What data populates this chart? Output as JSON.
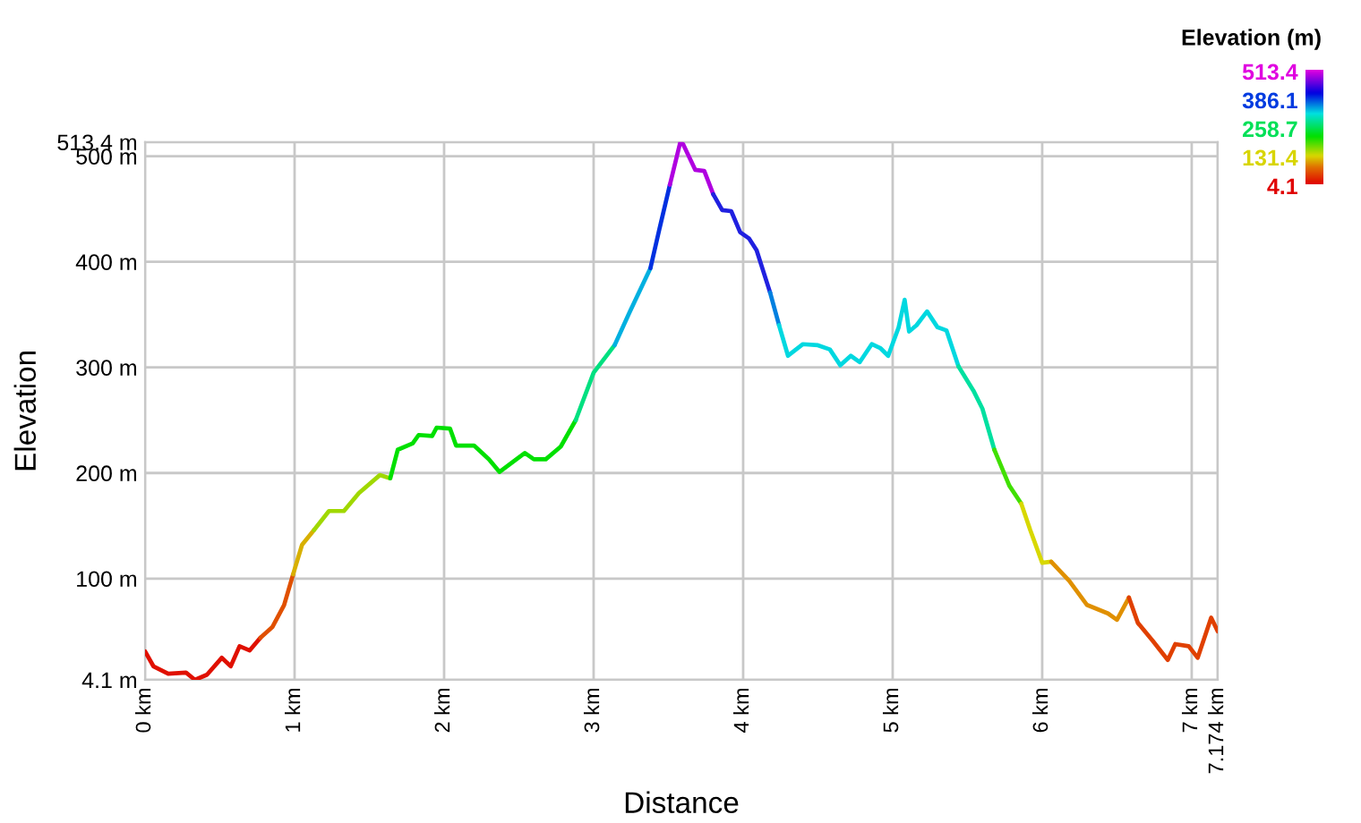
{
  "chart_data": {
    "type": "line",
    "xlabel": "Distance",
    "ylabel": "Elevation",
    "clabel": "Elevation (m)",
    "series": [
      {
        "color": "#e01000",
        "x": [
          0,
          0.056,
          0.155,
          0.274,
          0.334,
          0.414,
          0.513,
          0.573,
          0.632,
          0.7,
          0.771
        ],
        "values": [
          31,
          17,
          10,
          11,
          4.1,
          9,
          25,
          17,
          36,
          32,
          44
        ]
      },
      {
        "color": "#e05000",
        "x": [
          0.771,
          0.851,
          0.93,
          0.99
        ],
        "values": [
          44,
          54,
          75,
          104
        ]
      },
      {
        "color": "#d8b000",
        "x": [
          0.99,
          1.05,
          1.13
        ],
        "values": [
          104,
          132,
          146
        ]
      },
      {
        "color": "#a0d800",
        "x": [
          1.13,
          1.23,
          1.33,
          1.43,
          1.57,
          1.64
        ],
        "values": [
          146,
          164,
          164,
          181,
          198,
          195
        ]
      },
      {
        "color": "#00e000",
        "x": [
          1.64,
          1.69,
          1.79,
          1.83,
          1.92,
          1.95,
          2.04,
          2.08,
          2.2,
          2.3,
          2.37,
          2.54,
          2.6,
          2.68,
          2.78,
          2.88
        ],
        "values": [
          195,
          222,
          228,
          236,
          235,
          243,
          242,
          226,
          226,
          213,
          201,
          219,
          213,
          213,
          225,
          250
        ]
      },
      {
        "color": "#00e080",
        "x": [
          2.88,
          3.0,
          3.14
        ],
        "values": [
          250,
          295,
          321
        ]
      },
      {
        "color": "#00b0e0",
        "x": [
          3.14,
          3.24,
          3.38
        ],
        "values": [
          321,
          352,
          394
        ]
      },
      {
        "color": "#0030e0",
        "x": [
          3.38,
          3.44,
          3.51
        ],
        "values": [
          394,
          431,
          473
        ]
      },
      {
        "color": "#b000e0",
        "x": [
          3.51,
          3.58,
          3.6,
          3.68,
          3.74,
          3.8
        ],
        "values": [
          473,
          513.4,
          511,
          487,
          486,
          464
        ]
      },
      {
        "color": "#2020e0",
        "x": [
          3.8,
          3.86,
          3.92,
          3.98,
          4.04,
          4.09,
          4.18
        ],
        "values": [
          464,
          449,
          448,
          428,
          422,
          411,
          371
        ]
      },
      {
        "color": "#0080e0",
        "x": [
          4.18,
          4.24
        ],
        "values": [
          371,
          340
        ]
      },
      {
        "color": "#00d8e0",
        "x": [
          4.24,
          4.3,
          4.4,
          4.5,
          4.58,
          4.65,
          4.72,
          4.78,
          4.86,
          4.92,
          4.97,
          5.04,
          5.08,
          5.11,
          5.16,
          5.23,
          5.3,
          5.36,
          5.44
        ],
        "values": [
          340,
          311,
          322,
          321,
          317,
          302,
          311,
          305,
          322,
          318,
          311,
          338,
          364,
          334,
          340,
          353,
          338,
          335,
          301
        ]
      },
      {
        "color": "#00e0a0",
        "x": [
          5.44,
          5.54,
          5.6,
          5.68
        ],
        "values": [
          301,
          278,
          261,
          222
        ]
      },
      {
        "color": "#40e000",
        "x": [
          5.68,
          5.78,
          5.86
        ],
        "values": [
          222,
          188,
          171
        ]
      },
      {
        "color": "#d8d800",
        "x": [
          5.86,
          5.92,
          6.0,
          6.06
        ],
        "values": [
          171,
          146,
          115,
          116
        ]
      },
      {
        "color": "#e09000",
        "x": [
          6.06,
          6.18,
          6.3,
          6.44,
          6.5,
          6.58
        ],
        "values": [
          116,
          98,
          75,
          67,
          61,
          82
        ]
      },
      {
        "color": "#e04000",
        "x": [
          6.58,
          6.64,
          6.74,
          6.84,
          6.89,
          6.98,
          7.04,
          7.13,
          7.174
        ],
        "values": [
          82,
          58,
          41,
          23,
          38,
          36,
          25,
          63,
          50
        ]
      }
    ],
    "xlim": [
      0,
      7.174
    ],
    "ylim": [
      4.1,
      513.4
    ],
    "xticks": [
      {
        "value": 0,
        "label": "0 km"
      },
      {
        "value": 1,
        "label": "1 km"
      },
      {
        "value": 2,
        "label": "2 km"
      },
      {
        "value": 3,
        "label": "3 km"
      },
      {
        "value": 4,
        "label": "4 km"
      },
      {
        "value": 5,
        "label": "5 km"
      },
      {
        "value": 6,
        "label": "6 km"
      },
      {
        "value": 7,
        "label": "7 km"
      },
      {
        "value": 7.174,
        "label": "7.174 km"
      }
    ],
    "yticks": [
      {
        "value": 4.1,
        "label": "4.1 m"
      },
      {
        "value": 100,
        "label": "100 m"
      },
      {
        "value": 200,
        "label": "200 m"
      },
      {
        "value": 300,
        "label": "300 m"
      },
      {
        "value": 400,
        "label": "400 m"
      },
      {
        "value": 500,
        "label": "500 m"
      },
      {
        "value": 513.4,
        "label": "513.4 m"
      }
    ],
    "clim": [
      4.1,
      513.4
    ],
    "cticks": [
      513.4,
      386.1,
      258.7,
      131.4,
      4.1
    ],
    "grid": true
  }
}
